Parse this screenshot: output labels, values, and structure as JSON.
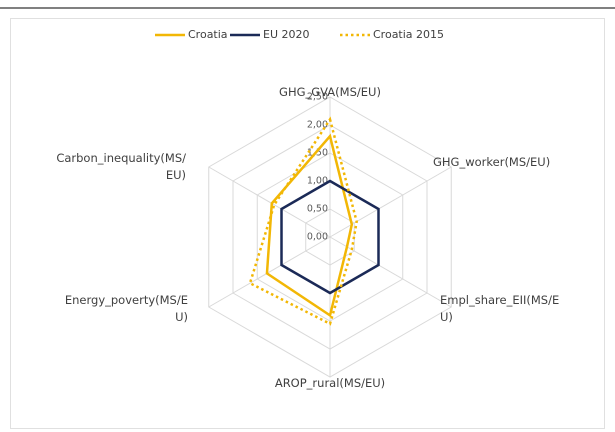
{
  "chart_data": {
    "type": "radar",
    "categories": [
      "GHG_GVA(MS/EU)",
      "GHG_worker(MS/EU)",
      "Empl_share_EII(MS/EU)",
      "AROP_rural(MS/EU)",
      "Energy_poverty(MS/EU)",
      "Carbon_inequality(MS/EU)"
    ],
    "series": [
      {
        "name": "Croatia",
        "color": "#f2b705",
        "style": "solid",
        "values": [
          1.8,
          0.45,
          0.35,
          1.4,
          1.3,
          1.2
        ]
      },
      {
        "name": "EU 2020",
        "color": "#1b2a57",
        "style": "solid",
        "values": [
          1,
          1,
          1,
          1,
          1,
          1
        ]
      },
      {
        "name": "Croatia 2015",
        "color": "#f2b705",
        "style": "dotted",
        "values": [
          2.1,
          0.55,
          0.45,
          1.55,
          1.65,
          1.15
        ]
      }
    ],
    "ylim": [
      0,
      2.5
    ],
    "yticks": [
      {
        "value": 0,
        "label": "0,00"
      },
      {
        "value": 0.5,
        "label": "0,50"
      },
      {
        "value": 1,
        "label": "1,00"
      },
      {
        "value": 1.5,
        "label": "1,50"
      },
      {
        "value": 2,
        "label": "2,00"
      },
      {
        "value": 2.5,
        "label": "2,50"
      }
    ],
    "grid": true,
    "legend": "top"
  }
}
